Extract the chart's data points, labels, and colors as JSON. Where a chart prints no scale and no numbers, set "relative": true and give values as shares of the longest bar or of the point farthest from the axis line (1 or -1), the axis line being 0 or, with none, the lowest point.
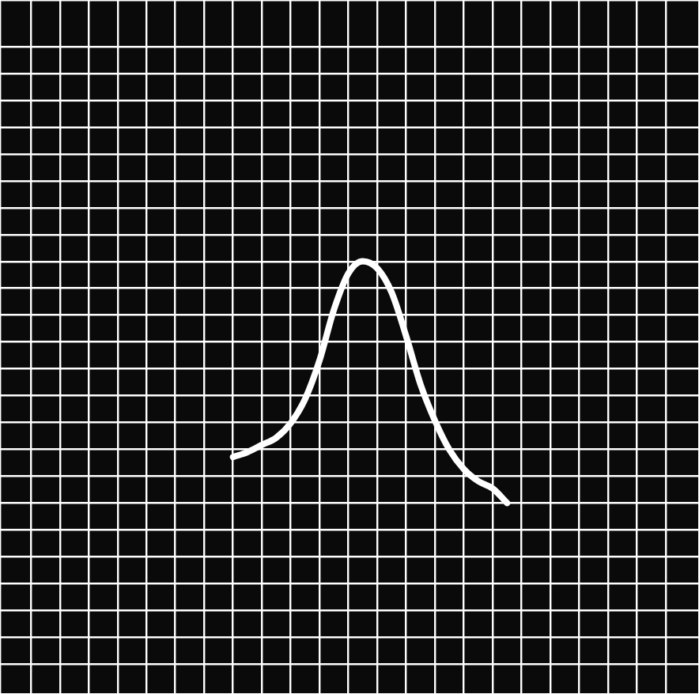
{
  "chart_data": {
    "type": "line",
    "relative": true,
    "grid": true,
    "marker": "none",
    "line_style": "solid",
    "categories": [
      null,
      null,
      null,
      null,
      null,
      null,
      null,
      null,
      null,
      null,
      null,
      null,
      null,
      null,
      null,
      null,
      null,
      null,
      null,
      null
    ],
    "series": [
      {
        "color": "#ffffff",
        "values": [
          0.19,
          0.21,
          0.24,
          0.27,
          0.33,
          0.43,
          0.59,
          0.8,
          0.95,
          1,
          0.97,
          0.87,
          0.69,
          0.49,
          0.34,
          0.22,
          0.14,
          0.09,
          0.06,
          0
        ]
      }
    ]
  }
}
